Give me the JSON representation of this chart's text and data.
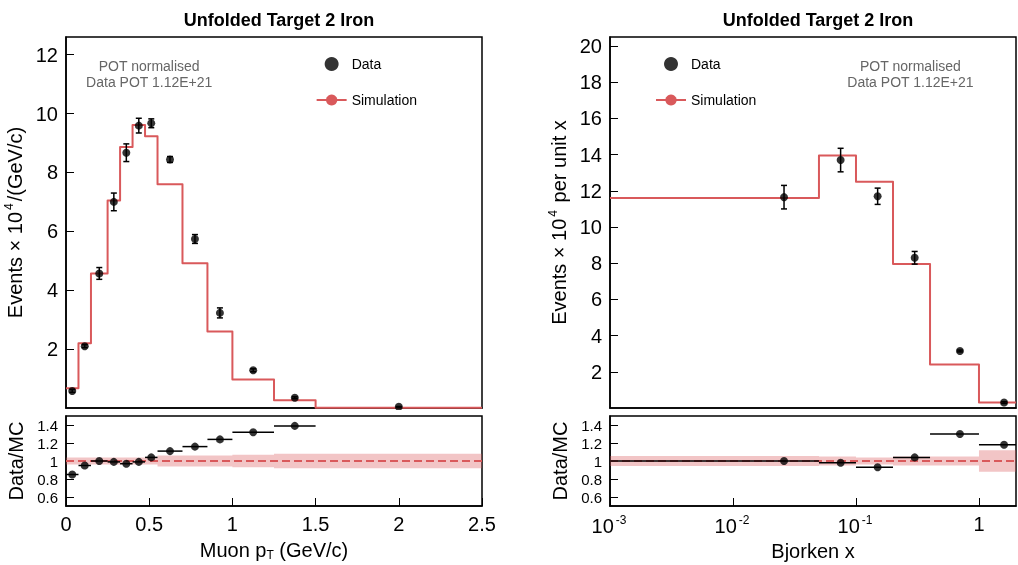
{
  "chart_data": [
    {
      "type": "histogram",
      "title": "Unfolded Target 2 Iron",
      "ylabel": "Events × 10$^{4}$/(GeV/c)",
      "annotations": [
        "POT normalised",
        "Data POT 1.12E+21"
      ],
      "xlim": [
        0,
        2.5
      ],
      "ylim": [
        0,
        12.6
      ],
      "yticks": [
        2,
        4,
        6,
        8,
        10,
        12
      ],
      "tick_labels": "y",
      "legend": "top right",
      "series": [
        {
          "name": "Data",
          "type": "scatter",
          "marker": "circle",
          "color": "#000000",
          "x": [
            0.0375,
            0.1125,
            0.2,
            0.2875,
            0.3625,
            0.4375,
            0.5125,
            0.625,
            0.775,
            0.925,
            1.125,
            1.375,
            2.0
          ],
          "values": [
            0.58,
            2.1,
            4.57,
            7.0,
            8.67,
            9.59,
            9.67,
            8.44,
            5.74,
            3.23,
            1.28,
            0.35,
            0.04
          ],
          "errors": [
            0.05,
            0.05,
            0.2,
            0.3,
            0.3,
            0.25,
            0.15,
            0.1,
            0.15,
            0.17,
            0.05,
            0.03,
            0.01
          ]
        },
        {
          "name": "Simulation",
          "color": "#d9595b",
          "bins": [
            0,
            0.075,
            0.15,
            0.25,
            0.325,
            0.4,
            0.475,
            0.55,
            0.7,
            0.85,
            1.0,
            1.25,
            1.5,
            2.5
          ],
          "values": [
            0.67,
            2.2,
            4.57,
            7.05,
            8.86,
            9.61,
            9.23,
            7.6,
            4.92,
            2.6,
            0.97,
            0.26,
            0.01
          ]
        }
      ]
    },
    {
      "type": "step",
      "xlabel": "Muon p$_{T}$ (GeV/c)",
      "ylabel": "Data/MC",
      "xlim": [
        0,
        2.5
      ],
      "xticks": [
        0,
        0.5,
        1,
        1.5,
        2,
        2.5
      ],
      "ylim": [
        0.5,
        1.5
      ],
      "yticks": [
        0.6,
        0.8,
        1,
        1.2,
        1.4
      ],
      "series": [
        {
          "type": "scatter",
          "marker": "circle",
          "color": "#000000",
          "x": [
            0.0375,
            0.1125,
            0.2,
            0.2875,
            0.3625,
            0.4375,
            0.5125,
            0.625,
            0.775,
            0.925,
            1.125,
            1.375
          ],
          "values": [
            0.85,
            0.95,
            1.0,
            0.99,
            0.97,
            0.99,
            1.04,
            1.11,
            1.16,
            1.24,
            1.32,
            1.39
          ],
          "xerrors": [
            [
              0,
              0.075
            ],
            [
              0.075,
              0.15
            ],
            [
              0.15,
              0.25
            ],
            [
              0.25,
              0.325
            ],
            [
              0.325,
              0.4
            ],
            [
              0.4,
              0.475
            ],
            [
              0.475,
              0.55
            ],
            [
              0.55,
              0.7
            ],
            [
              0.7,
              0.85
            ],
            [
              0.85,
              1.0
            ],
            [
              1.0,
              1.25
            ],
            [
              1.25,
              1.5
            ]
          ]
        },
        {
          "color": "#d9595b",
          "line_style": "dashed",
          "x": [
            0,
            0.075,
            0.15,
            0.25,
            0.325,
            0.4,
            0.475,
            0.55,
            0.7,
            0.85,
            1.0,
            1.25,
            1.5,
            2.5
          ],
          "values": [
            1,
            1,
            1,
            1,
            1,
            1,
            1,
            1,
            1,
            1,
            1,
            1,
            1,
            1
          ],
          "lower": [
            0.96,
            0.96,
            0.96,
            0.96,
            0.96,
            0.96,
            0.96,
            0.94,
            0.94,
            0.94,
            0.93,
            0.92,
            0.92,
            0.92
          ],
          "upper": [
            1.04,
            1.04,
            1.04,
            1.04,
            1.04,
            1.04,
            1.04,
            1.06,
            1.06,
            1.06,
            1.07,
            1.08,
            1.08,
            1.08
          ]
        }
      ]
    },
    {
      "type": "histogram",
      "title": "Unfolded Target 2 Iron",
      "ylabel": "Events × 10$^{4}$ per unit x",
      "annotations": [
        "POT normalised",
        "Data POT 1.12E+21"
      ],
      "log": "x",
      "xlim": [
        0.001,
        2
      ],
      "ylim": [
        0,
        20.5
      ],
      "yticks": [
        2,
        4,
        6,
        8,
        10,
        12,
        14,
        16,
        18,
        20
      ],
      "tick_labels": "y",
      "legend": "top left",
      "series": [
        {
          "name": "Data",
          "type": "scatter",
          "marker": "circle",
          "color": "#000000",
          "x": [
            0.026,
            0.075,
            0.15,
            0.3,
            0.7,
            1.6
          ],
          "values": [
            11.65,
            13.7,
            11.7,
            8.3,
            3.15,
            0.3
          ],
          "errors": [
            0.65,
            0.65,
            0.45,
            0.35,
            0.05,
            0.05
          ]
        },
        {
          "name": "Simulation",
          "color": "#d9595b",
          "bins": [
            0.001,
            0.05,
            0.1,
            0.2,
            0.4,
            1,
            2
          ],
          "values": [
            11.6,
            13.95,
            12.5,
            7.95,
            2.4,
            0.3
          ]
        }
      ]
    },
    {
      "type": "step",
      "xlabel": "Bjorken x",
      "ylabel": "Data/MC",
      "log": "x",
      "xlim": [
        0.001,
        2
      ],
      "xticks": [
        {
          "value": 0.001,
          "label": "10$^{-3}$"
        },
        {
          "value": 0.01,
          "label": "10$^{-2}$"
        },
        {
          "value": 0.1,
          "label": "10$^{-1}$"
        },
        1
      ],
      "ylim": [
        0.5,
        1.5
      ],
      "yticks": [
        0.6,
        0.8,
        1,
        1.2,
        1.4
      ],
      "series": [
        {
          "type": "scatter",
          "marker": "circle",
          "color": "#000000",
          "x": [
            0.026,
            0.075,
            0.15,
            0.3,
            0.7,
            1.6
          ],
          "values": [
            1.0,
            0.98,
            0.93,
            1.04,
            1.3,
            1.18
          ],
          "xerrors": [
            [
              0.001,
              0.05
            ],
            [
              0.05,
              0.1
            ],
            [
              0.1,
              0.2
            ],
            [
              0.2,
              0.4
            ],
            [
              0.4,
              1
            ],
            [
              1,
              2
            ]
          ]
        },
        {
          "color": "#d9595b",
          "line_style": "dashed",
          "x": [
            0.001,
            0.05,
            0.1,
            0.2,
            0.4,
            1,
            2
          ],
          "values": [
            1,
            1,
            1,
            1,
            1,
            1,
            1
          ],
          "lower": [
            0.945,
            0.95,
            0.96,
            0.95,
            0.95,
            0.88,
            0.88
          ],
          "upper": [
            1.055,
            1.05,
            1.04,
            1.05,
            1.05,
            1.12,
            1.12
          ]
        }
      ]
    }
  ]
}
